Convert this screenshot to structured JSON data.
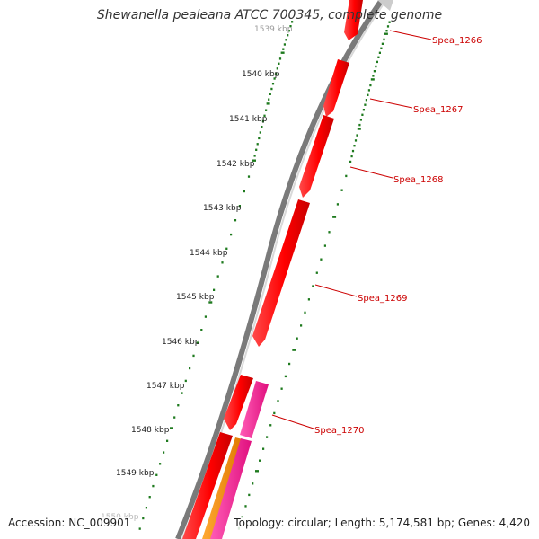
{
  "header": {
    "title": "Shewanella pealeana ATCC 700345, complete genome"
  },
  "footer": {
    "accession": "Accession: NC_009901",
    "summary": "Topology: circular; Length: 5,174,581 bp; Genes: 4,420"
  },
  "ruler": {
    "labels": [
      "1539 kbp",
      "1540 kbp",
      "1541 kbp",
      "1542 kbp",
      "1543 kbp",
      "1544 kbp",
      "1545 kbp",
      "1546 kbp",
      "1547 kbp",
      "1548 kbp",
      "1549 kbp",
      "1550 kbp"
    ],
    "color": "#1e7a1e"
  },
  "genes": [
    {
      "name": "Spea_1266",
      "color": "#ff0000",
      "strand": "forward"
    },
    {
      "name": "Spea_1267",
      "color": "#ff0000",
      "strand": "forward"
    },
    {
      "name": "Spea_1268",
      "color": "#ff0000",
      "strand": "forward"
    },
    {
      "name": "Spea_1269",
      "color": "#ff0000",
      "strand": "forward"
    },
    {
      "name": "Spea_1270",
      "color": "#ff1493",
      "strand": "reverse"
    }
  ],
  "colors": {
    "cds": "#ff0000",
    "pink_feature": "#ff1493",
    "orange_feature": "#ff8c00",
    "backbone": "#808080",
    "label": "#cc0000"
  }
}
